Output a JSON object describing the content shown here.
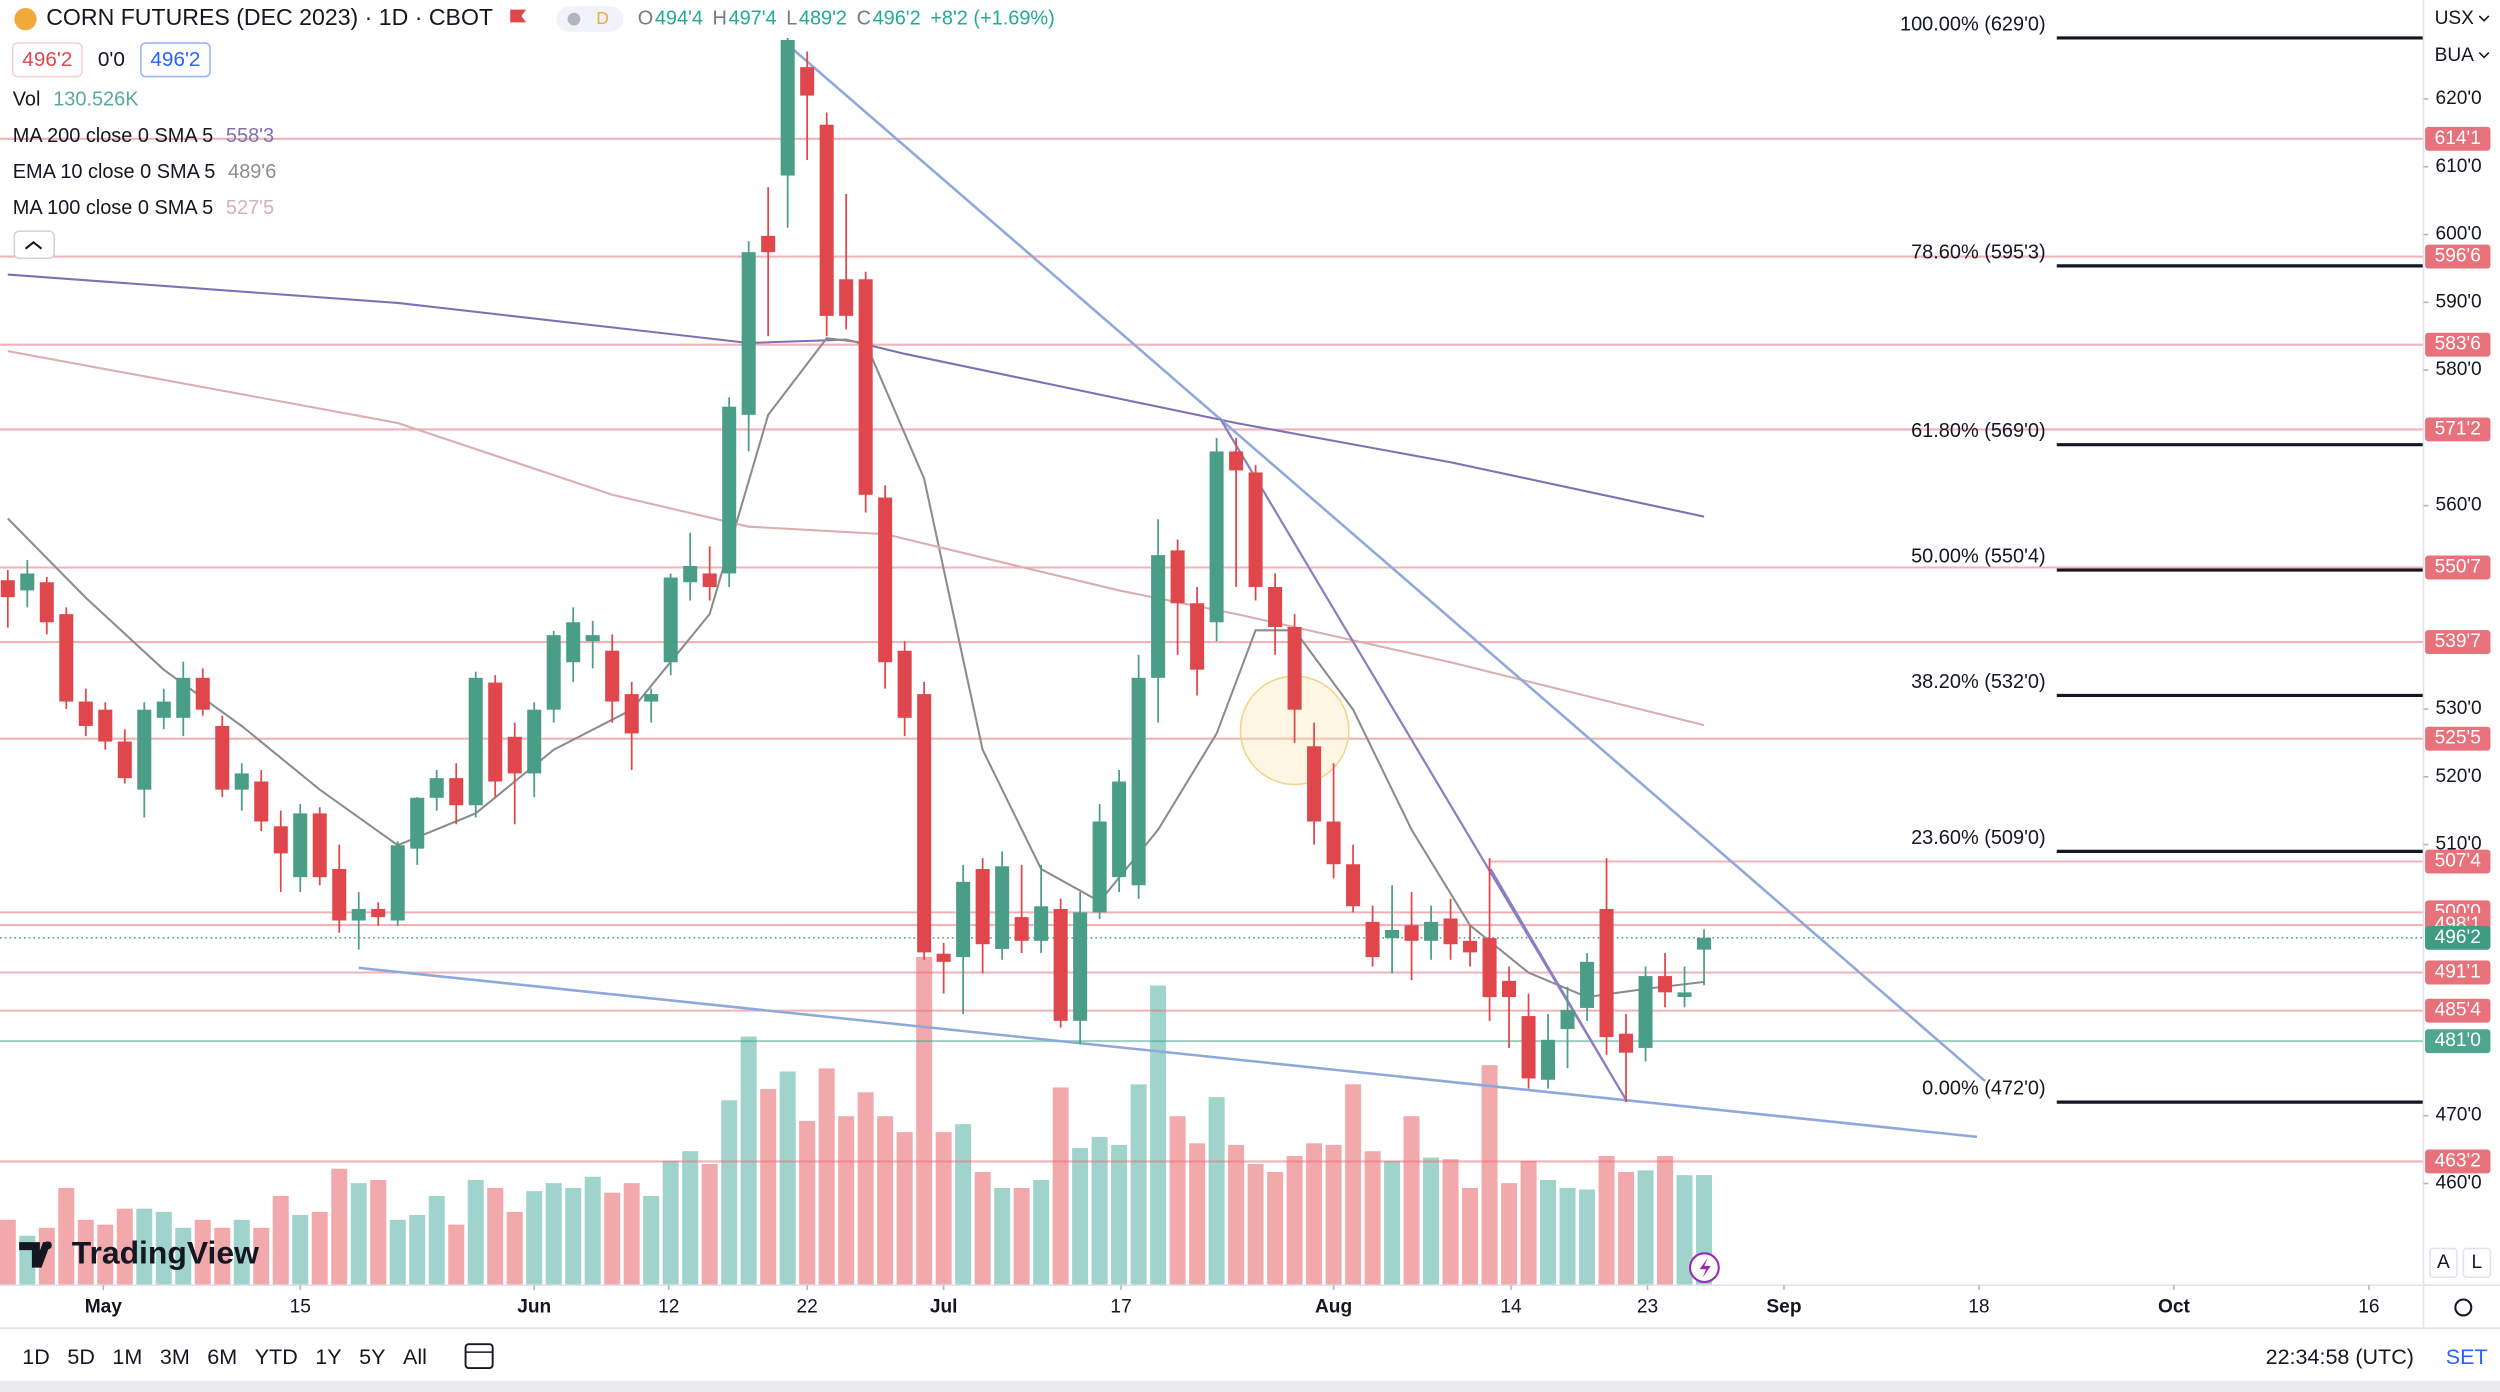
{
  "header": {
    "title": "CORN FUTURES (DEC 2023) · 1D · CBOT",
    "badge": "D",
    "ohlc": [
      {
        "k": "O",
        "v": "494'4"
      },
      {
        "k": "H",
        "v": "497'4"
      },
      {
        "k": "L",
        "v": "489'2"
      },
      {
        "k": "C",
        "v": "496'2"
      }
    ],
    "change": "+8'2 (+1.69%)",
    "price_boxes": [
      "496'2",
      "0'0",
      "496'2"
    ]
  },
  "right_top": [
    "USX",
    "BUA"
  ],
  "scale_buttons": [
    "A",
    "L"
  ],
  "logo": "TradingView",
  "toolbar": {
    "ranges": [
      "1D",
      "5D",
      "1M",
      "3M",
      "6M",
      "YTD",
      "1Y",
      "5Y",
      "All"
    ],
    "time": "22:34:58 (UTC)",
    "settings": "SET"
  },
  "chart_data": {
    "type": "candlestick",
    "ylim": [
      445,
      634.6
    ],
    "xlim": [
      -0.4,
      123.9
    ],
    "yticks": [
      {
        "value": 620,
        "label": "620'0"
      },
      {
        "value": 610,
        "label": "610'0"
      },
      {
        "value": 600,
        "label": "600'0"
      },
      {
        "value": 590,
        "label": "590'0"
      },
      {
        "value": 580,
        "label": "580'0"
      },
      {
        "value": 560,
        "label": "560'0"
      },
      {
        "value": 530,
        "label": "530'0"
      },
      {
        "value": 520,
        "label": "520'0"
      },
      {
        "value": 510,
        "label": "510'0"
      },
      {
        "value": 470,
        "label": "470'0"
      },
      {
        "value": 460,
        "label": "460'0"
      }
    ],
    "xticks": [
      {
        "value": 4.9,
        "label": "May"
      },
      {
        "value": 15,
        "label": "15"
      },
      {
        "value": 27,
        "label": "Jun"
      },
      {
        "value": 33.9,
        "label": "12"
      },
      {
        "value": 41,
        "label": "22"
      },
      {
        "value": 48,
        "label": "Jul"
      },
      {
        "value": 57.1,
        "label": "17"
      },
      {
        "value": 68,
        "label": "Aug"
      },
      {
        "value": 77.1,
        "label": "14"
      },
      {
        "value": 84.1,
        "label": "23"
      },
      {
        "value": 91.1,
        "label": "Sep"
      },
      {
        "value": 101.1,
        "label": "18"
      },
      {
        "value": 111.1,
        "label": "Oct"
      },
      {
        "value": 121.1,
        "label": "16"
      }
    ],
    "up_color": "#4a9e88",
    "down_color": "#e0474c",
    "candles": [
      {
        "o": 549,
        "h": 550.5,
        "l": 542,
        "c": 546.5
      },
      {
        "o": 547.5,
        "h": 552,
        "l": 545,
        "c": 550
      },
      {
        "o": 548.7,
        "h": 549.5,
        "l": 541,
        "c": 542.8
      },
      {
        "o": 544,
        "h": 545,
        "l": 530,
        "c": 531.1
      },
      {
        "o": 531.1,
        "h": 533,
        "l": 526,
        "c": 527.5
      },
      {
        "o": 529.9,
        "h": 531,
        "l": 524,
        "c": 525.2
      },
      {
        "o": 525.2,
        "h": 527,
        "l": 519,
        "c": 519.8
      },
      {
        "o": 518.1,
        "h": 531,
        "l": 514,
        "c": 529.9
      },
      {
        "o": 528.7,
        "h": 533,
        "l": 527,
        "c": 531.1
      },
      {
        "o": 528.7,
        "h": 537,
        "l": 526,
        "c": 534.6
      },
      {
        "o": 534.6,
        "h": 536,
        "l": 529,
        "c": 529.9
      },
      {
        "o": 527.5,
        "h": 529,
        "l": 517,
        "c": 518.1
      },
      {
        "o": 518.1,
        "h": 522,
        "l": 515,
        "c": 520.5
      },
      {
        "o": 519.3,
        "h": 521,
        "l": 512,
        "c": 513.4
      },
      {
        "o": 512.7,
        "h": 515,
        "l": 503,
        "c": 508.7
      },
      {
        "o": 505.2,
        "h": 516,
        "l": 503,
        "c": 514.6
      },
      {
        "o": 514.6,
        "h": 515.5,
        "l": 504,
        "c": 505.2
      },
      {
        "o": 506.4,
        "h": 510,
        "l": 497,
        "c": 498.8
      },
      {
        "o": 498.8,
        "h": 503,
        "l": 494.5,
        "c": 500.5
      },
      {
        "o": 500.5,
        "h": 501.5,
        "l": 498,
        "c": 499.3
      },
      {
        "o": 498.8,
        "h": 510.5,
        "l": 498,
        "c": 509.9
      },
      {
        "o": 509.4,
        "h": 517,
        "l": 507,
        "c": 516.9
      },
      {
        "o": 516.9,
        "h": 521,
        "l": 515,
        "c": 519.8
      },
      {
        "o": 519.8,
        "h": 522,
        "l": 513,
        "c": 515.8
      },
      {
        "o": 515.8,
        "h": 535.5,
        "l": 514,
        "c": 534.6
      },
      {
        "o": 533.9,
        "h": 535,
        "l": 517,
        "c": 519.3
      },
      {
        "o": 525.9,
        "h": 528,
        "l": 513,
        "c": 520.5
      },
      {
        "o": 520.5,
        "h": 531,
        "l": 517,
        "c": 529.9
      },
      {
        "o": 529.9,
        "h": 541.5,
        "l": 528,
        "c": 540.9
      },
      {
        "o": 536.9,
        "h": 545,
        "l": 534,
        "c": 542.8
      },
      {
        "o": 540,
        "h": 543,
        "l": 536,
        "c": 540.9
      },
      {
        "o": 538.6,
        "h": 541,
        "l": 528,
        "c": 531.1
      },
      {
        "o": 532.2,
        "h": 534,
        "l": 521,
        "c": 526.4
      },
      {
        "o": 531.1,
        "h": 533,
        "l": 528,
        "c": 532.2
      },
      {
        "o": 536.9,
        "h": 550,
        "l": 535,
        "c": 549.4
      },
      {
        "o": 548.7,
        "h": 556,
        "l": 546,
        "c": 551.1
      },
      {
        "o": 550,
        "h": 554,
        "l": 546,
        "c": 548
      },
      {
        "o": 550,
        "h": 576,
        "l": 548,
        "c": 574.6
      },
      {
        "o": 573.4,
        "h": 599,
        "l": 568,
        "c": 597.4
      },
      {
        "o": 599.8,
        "h": 607,
        "l": 585,
        "c": 597.4
      },
      {
        "o": 608.7,
        "h": 629,
        "l": 601,
        "c": 628.7
      },
      {
        "o": 624.7,
        "h": 627,
        "l": 611,
        "c": 620.5
      },
      {
        "o": 616.2,
        "h": 618,
        "l": 585,
        "c": 588
      },
      {
        "o": 593.4,
        "h": 606,
        "l": 586,
        "c": 588
      },
      {
        "o": 593.4,
        "h": 594.5,
        "l": 559,
        "c": 561.6
      },
      {
        "o": 561.2,
        "h": 563,
        "l": 533,
        "c": 536.9
      },
      {
        "o": 538.6,
        "h": 540,
        "l": 526,
        "c": 528.7
      },
      {
        "o": 532.2,
        "h": 534,
        "l": 493,
        "c": 494.1
      },
      {
        "o": 493.9,
        "h": 495.5,
        "l": 488,
        "c": 492.7
      },
      {
        "o": 493.4,
        "h": 507,
        "l": 485,
        "c": 504.5
      },
      {
        "o": 506.4,
        "h": 508,
        "l": 491,
        "c": 495.3
      },
      {
        "o": 494.6,
        "h": 509,
        "l": 493,
        "c": 506.8
      },
      {
        "o": 499.3,
        "h": 507,
        "l": 494,
        "c": 495.8
      },
      {
        "o": 495.8,
        "h": 507,
        "l": 494,
        "c": 500.9
      },
      {
        "o": 500.5,
        "h": 502,
        "l": 483,
        "c": 484
      },
      {
        "o": 484,
        "h": 503,
        "l": 480.5,
        "c": 500
      },
      {
        "o": 500,
        "h": 516,
        "l": 499,
        "c": 513.4
      },
      {
        "o": 505.2,
        "h": 521,
        "l": 503,
        "c": 519.3
      },
      {
        "o": 504,
        "h": 538,
        "l": 502,
        "c": 534.6
      },
      {
        "o": 534.6,
        "h": 558,
        "l": 528,
        "c": 552.7
      },
      {
        "o": 553.4,
        "h": 555,
        "l": 538,
        "c": 545.6
      },
      {
        "o": 545.6,
        "h": 548,
        "l": 532,
        "c": 535.8
      },
      {
        "o": 542.8,
        "h": 570,
        "l": 540,
        "c": 568
      },
      {
        "o": 568,
        "h": 570,
        "l": 548,
        "c": 565.2
      },
      {
        "o": 564.9,
        "h": 566,
        "l": 546,
        "c": 548
      },
      {
        "o": 548,
        "h": 550,
        "l": 538,
        "c": 542.1
      },
      {
        "o": 542.1,
        "h": 544,
        "l": 525,
        "c": 529.9
      },
      {
        "o": 524.5,
        "h": 528,
        "l": 510,
        "c": 513.4
      },
      {
        "o": 513.4,
        "h": 522,
        "l": 505,
        "c": 507.1
      },
      {
        "o": 507.1,
        "h": 510,
        "l": 500,
        "c": 500.9
      },
      {
        "o": 498.6,
        "h": 501,
        "l": 492,
        "c": 493.4
      },
      {
        "o": 496.2,
        "h": 504,
        "l": 491,
        "c": 497.4
      },
      {
        "o": 498.1,
        "h": 503,
        "l": 490,
        "c": 495.8
      },
      {
        "o": 495.8,
        "h": 501,
        "l": 493,
        "c": 498.6
      },
      {
        "o": 499.1,
        "h": 502,
        "l": 493,
        "c": 495.3
      },
      {
        "o": 495.8,
        "h": 498,
        "l": 492,
        "c": 494.1
      },
      {
        "o": 496.2,
        "h": 508,
        "l": 484,
        "c": 487.5
      },
      {
        "o": 489.9,
        "h": 492,
        "l": 480,
        "c": 487.5
      },
      {
        "o": 484.7,
        "h": 488,
        "l": 474,
        "c": 475.5
      },
      {
        "o": 475.3,
        "h": 485,
        "l": 474,
        "c": 481.2
      },
      {
        "o": 482.8,
        "h": 489,
        "l": 477,
        "c": 485.6
      },
      {
        "o": 485.9,
        "h": 494,
        "l": 484,
        "c": 492.7
      },
      {
        "o": 500.5,
        "h": 508,
        "l": 479,
        "c": 481.6
      },
      {
        "o": 482.1,
        "h": 485,
        "l": 472,
        "c": 479.3
      },
      {
        "o": 480,
        "h": 492,
        "l": 478,
        "c": 490.6
      },
      {
        "o": 490.6,
        "h": 494,
        "l": 486,
        "c": 488.2
      },
      {
        "o": 487.5,
        "h": 492,
        "l": 486,
        "c": 488.2
      },
      {
        "o": 494.5,
        "h": 497.5,
        "l": 489.25,
        "c": 496.25
      }
    ],
    "volume_name": "Vol",
    "volume_label": "130.526K",
    "volume_up_color": "#9fd3cb",
    "volume_down_color": "#f2a9ab",
    "volume": [
      77.5,
      58.6,
      68,
      115.3,
      77.5,
      71.8,
      90.7,
      90.7,
      86.9,
      68,
      77.5,
      68,
      77.5,
      68,
      105.8,
      83.2,
      86.9,
      138,
      121,
      124.7,
      77.5,
      83.2,
      105.8,
      71.8,
      124.7,
      115.3,
      86.9,
      111.5,
      121,
      115.3,
      128.5,
      109.6,
      121,
      105.8,
      147.4,
      158.8,
      143.6,
      219.2,
      294.8,
      232.5,
      253.3,
      194.7,
      257,
      200.3,
      228.7,
      200.3,
      181.4,
      389.3,
      181.4,
      190.9,
      134.2,
      115.3,
      115.3,
      124.7,
      234.4,
      162.5,
      175.8,
      166.3,
      238.1,
      355.3,
      200.3,
      168.2,
      223,
      166.3,
      143.6,
      134.2,
      153.1,
      168.2,
      166.3,
      238.1,
      158.8,
      147.4,
      200.3,
      151.2,
      149.3,
      115.3,
      260.8,
      121,
      147.4,
      124.7,
      115.3,
      113.4,
      153.1,
      134.2,
      136.1,
      153.1,
      130.4,
      130.526
    ],
    "series": [
      {
        "name": "MA 200 close 0 SMA 5",
        "value_label": "558'3",
        "color": "#7a72b4",
        "x": [
          0,
          20,
          38,
          43,
          46,
          57,
          63,
          74,
          87
        ],
        "values": [
          594.1,
          589.9,
          584,
          584.5,
          582.4,
          575.8,
          572.2,
          566.4,
          558.375
        ]
      },
      {
        "name": "EMA 10 close 0 SMA 5",
        "value_label": "489'6",
        "color": "#8c8c8c",
        "x": [
          0,
          4,
          8,
          12,
          16,
          20,
          24,
          28,
          32,
          36,
          39,
          42,
          44,
          47,
          50,
          53,
          56,
          59,
          62,
          64,
          66,
          69,
          72,
          75,
          78,
          81,
          84,
          87
        ],
        "values": [
          558.1,
          546.4,
          535.8,
          527.5,
          518.1,
          509.9,
          514.6,
          524,
          529.9,
          544,
          573.4,
          584.7,
          584,
          564,
          524,
          506.4,
          501.6,
          512.2,
          526.4,
          541.6,
          541.6,
          529.9,
          512.2,
          498.1,
          491.1,
          487.5,
          488.7,
          489.75
        ]
      },
      {
        "name": "MA 100 close 0 SMA 5",
        "value_label": "527'5",
        "color": "#d9aeb1",
        "x": [
          0,
          20,
          31,
          38,
          45,
          57,
          63,
          74,
          87
        ],
        "values": [
          582.8,
          572.2,
          561.6,
          556.9,
          555.8,
          547.5,
          544,
          536.9,
          527.625
        ]
      }
    ],
    "price_levels": [
      {
        "value": 614.125,
        "label": "614'1",
        "color": "#e8727b"
      },
      {
        "value": 596.75,
        "label": "596'6",
        "color": "#e8727b"
      },
      {
        "value": 583.75,
        "label": "583'6",
        "color": "#e8727b"
      },
      {
        "value": 571.25,
        "label": "571'2",
        "color": "#e8727b"
      },
      {
        "value": 550.875,
        "label": "550'7",
        "color": "#e8727b"
      },
      {
        "value": 539.875,
        "label": "539'7",
        "color": "#e8727b"
      },
      {
        "value": 525.625,
        "label": "525'5",
        "color": "#e8727b"
      },
      {
        "value": 507.5,
        "label": "507'4",
        "color": "#e8727b",
        "from": 76
      },
      {
        "value": 500,
        "label": "500'0",
        "color": "#e8727b"
      },
      {
        "value": 498.125,
        "label": "498'1",
        "color": "#e8727b"
      },
      {
        "value": 491.125,
        "label": "491'1",
        "color": "#e8727b"
      },
      {
        "value": 485.5,
        "label": "485'4",
        "color": "#e8727b"
      },
      {
        "value": 481,
        "label": "481'0",
        "color": "#4fa58e"
      },
      {
        "value": 463.25,
        "label": "463'2",
        "color": "#e8727b"
      },
      {
        "value": 496.25,
        "label": "496'2",
        "color": "#3f9c80",
        "current": true
      }
    ],
    "fib_levels": [
      {
        "value": 629,
        "label": "100.00% (629'0)"
      },
      {
        "value": 595.375,
        "label": "78.60% (595'3)"
      },
      {
        "value": 569,
        "label": "61.80% (569'0)"
      },
      {
        "value": 550.5,
        "label": "50.00% (550'4)"
      },
      {
        "value": 532,
        "label": "38.20% (532'0)"
      },
      {
        "value": 509,
        "label": "23.60% (509'0)"
      },
      {
        "value": 472,
        "label": "0.00% (472'0)"
      }
    ]
  }
}
